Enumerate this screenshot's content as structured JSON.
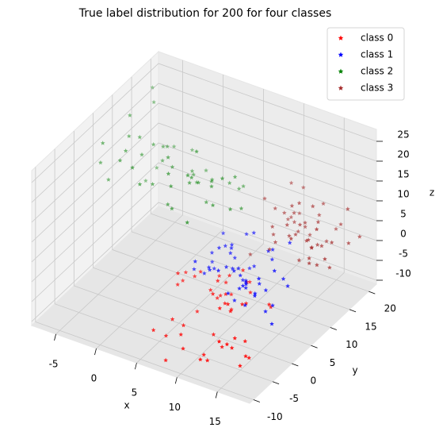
{
  "chart_data": {
    "type": "scatter3d",
    "title": "True label distribution for 200 for four classes",
    "xlabel": "x",
    "ylabel": "y",
    "zlabel": "z",
    "xlim": [
      -8,
      19
    ],
    "ylim": [
      -11,
      22
    ],
    "zlim": [
      -11,
      28
    ],
    "xticks": [
      -5,
      0,
      5,
      10,
      15
    ],
    "yticks": [
      -10,
      -5,
      0,
      5,
      10,
      15,
      20
    ],
    "zticks": [
      -10,
      -5,
      0,
      5,
      10,
      15,
      20,
      25
    ],
    "grid": true,
    "legend": "upper right",
    "series": [
      {
        "name": "class 0",
        "color": "#ff0000",
        "x": [
          6.2,
          9.8,
          12.1,
          4.5,
          14.3,
          8.7,
          10.9,
          7.4,
          11.6,
          13.2,
          5.8,
          9.1,
          15.4,
          3.9,
          8.2,
          12.7,
          10.3,
          6.9,
          14.8,
          7.7,
          11.1,
          9.5,
          13.9,
          5.2,
          8.9,
          10.6,
          12.4,
          7.1,
          15.1,
          4.8,
          9.3,
          11.8,
          6.5,
          13.5,
          8.4,
          10.1,
          14.1,
          7.9,
          12.9,
          5.5,
          9.7,
          11.3,
          6.7,
          13.7,
          8.1,
          10.8,
          15.7,
          4.2,
          12.2,
          9.9
        ],
        "y": [
          -4.2,
          2.1,
          -7.5,
          0.8,
          -2.3,
          5.4,
          -5.9,
          3.2,
          -1.1,
          6.7,
          -8.3,
          1.5,
          -3.6,
          4.1,
          -6.2,
          0.3,
          7.3,
          -2.8,
          2.9,
          -9.1,
          5.8,
          -0.6,
          -4.9,
          3.7,
          -7.1,
          1.9,
          -2.1,
          6.1,
          -5.3,
          0.1,
          4.6,
          -8.7,
          2.5,
          -3.3,
          5.1,
          -1.7,
          -6.6,
          3.9,
          0.9,
          -4.4,
          7.8,
          -2.6,
          1.2,
          -7.8,
          4.3,
          -0.2,
          -5.1,
          2.7,
          -3.9,
          6.4
        ],
        "z": [
          -5.3,
          -2.1,
          -8.4,
          0.5,
          -6.7,
          -1.2,
          -9.3,
          -3.8,
          -0.4,
          -7.1,
          -4.6,
          1.3,
          -8.9,
          -2.7,
          -5.9,
          -0.9,
          -3.4,
          -7.6,
          -1.8,
          -10.1,
          -4.1,
          0.2,
          -6.3,
          -2.4,
          -8.1,
          -5.2,
          -0.7,
          -3.1,
          -9.6,
          -1.5,
          -4.8,
          -7.3,
          0.8,
          -5.6,
          -2.9,
          -8.6,
          -3.7,
          -6.1,
          -1.1,
          -9.8,
          -4.3,
          -0.3,
          -7.9,
          -2.2,
          -5.7,
          -1.6,
          -6.9,
          -3.3,
          -8.2,
          0.1
        ]
      },
      {
        "name": "class 1",
        "color": "#0000ff",
        "x": [
          7.3,
          10.2,
          12.8,
          5.1,
          14.6,
          8.9,
          11.4,
          6.6,
          13.1,
          9.7,
          4.7,
          10.8,
          15.2,
          7.9,
          12.3,
          8.4,
          11.9,
          6.2,
          14.0,
          9.3,
          5.6,
          13.6,
          10.5,
          7.1,
          12.0,
          8.7,
          15.8,
          6.9,
          11.2,
          9.0,
          13.4,
          5.9,
          10.0,
          12.6,
          7.6,
          14.9,
          8.2,
          11.6,
          6.4,
          13.9,
          9.5,
          10.7,
          7.8,
          12.4,
          5.3,
          14.3,
          8.6,
          11.0,
          9.8,
          13.0
        ],
        "y": [
          3.2,
          6.5,
          1.1,
          8.4,
          4.7,
          10.2,
          2.3,
          7.1,
          5.6,
          0.4,
          9.3,
          3.8,
          6.9,
          11.5,
          1.9,
          5.2,
          8.8,
          4.1,
          0.9,
          7.6,
          2.7,
          10.8,
          5.9,
          3.4,
          9.7,
          6.2,
          1.5,
          8.1,
          4.4,
          11.1,
          2.1,
          7.3,
          5.0,
          0.7,
          9.1,
          3.6,
          6.7,
          10.4,
          1.3,
          8.5,
          4.9,
          2.5,
          7.9,
          5.4,
          10.9,
          3.0,
          6.1,
          0.2,
          9.5,
          4.0
        ],
        "z": [
          1.2,
          -2.4,
          3.5,
          -0.8,
          4.9,
          -3.6,
          0.3,
          2.7,
          -1.9,
          5.3,
          -4.2,
          1.8,
          -0.5,
          3.1,
          -2.9,
          0.9,
          4.2,
          -1.3,
          2.2,
          -3.9,
          0.6,
          5.7,
          -2.1,
          1.5,
          3.8,
          -0.2,
          -4.7,
          2.5,
          -1.6,
          4.6,
          0.1,
          -3.2,
          1.9,
          3.3,
          -0.9,
          -2.6,
          2.9,
          0.4,
          4.4,
          -1.1,
          1.0,
          -3.4,
          3.6,
          -0.6,
          2.0,
          -4.0,
          5.0,
          0.7,
          -1.8,
          2.4
        ]
      },
      {
        "name": "class 2",
        "color": "#008000",
        "x": [
          -6.2,
          -3.1,
          0.5,
          -4.8,
          2.3,
          -1.7,
          4.1,
          -5.5,
          -0.3,
          3.2,
          -2.6,
          5.4,
          -6.8,
          1.1,
          -3.9,
          2.9,
          -1.0,
          4.7,
          -5.1,
          0.2,
          -2.2,
          3.8,
          -4.3,
          1.6,
          -0.8,
          5.0,
          -6.0,
          2.5,
          -3.4,
          0.9,
          -1.4,
          4.4,
          -5.8,
          1.8,
          -2.9,
          3.5,
          -0.1,
          -4.6,
          2.0,
          -1.9,
          5.7,
          -3.6,
          0.7,
          -5.3,
          3.0,
          -2.4,
          1.4,
          -0.5,
          4.0,
          -4.0
        ],
        "y": [
          5.2,
          10.4,
          14.1,
          7.6,
          12.8,
          3.9,
          16.5,
          9.3,
          18.2,
          6.1,
          11.7,
          15.4,
          4.4,
          13.3,
          8.5,
          17.6,
          10.9,
          2.8,
          14.7,
          7.2,
          12.1,
          19.3,
          5.7,
          9.9,
          16.0,
          11.3,
          3.3,
          13.9,
          8.0,
          17.1,
          6.6,
          10.1,
          15.8,
          4.9,
          12.5,
          18.8,
          7.9,
          14.4,
          9.6,
          2.4,
          11.9,
          16.8,
          6.3,
          13.0,
          8.8,
          19.0,
          5.5,
          15.0,
          10.6,
          3.6
        ],
        "z": [
          12.3,
          18.7,
          8.4,
          22.1,
          5.9,
          15.6,
          10.2,
          25.3,
          7.1,
          19.4,
          13.8,
          4.2,
          16.9,
          9.5,
          21.7,
          6.8,
          14.1,
          11.6,
          24.0,
          8.9,
          17.3,
          5.1,
          20.5,
          12.9,
          7.7,
          15.2,
          23.4,
          10.7,
          18.1,
          6.2,
          13.4,
          9.1,
          26.2,
          11.1,
          16.4,
          4.7,
          19.9,
          8.1,
          14.8,
          21.0,
          7.4,
          12.0,
          17.8,
          5.6,
          22.8,
          10.0,
          15.9,
          9.7,
          13.1,
          20.2
        ]
      },
      {
        "name": "class 3",
        "color": "#a52a2a",
        "x": [
          12.1,
          15.3,
          9.8,
          17.4,
          13.6,
          10.7,
          16.2,
          18.5,
          11.3,
          14.8,
          9.2,
          16.9,
          12.7,
          15.9,
          10.1,
          17.8,
          13.2,
          11.8,
          14.2,
          18.1,
          9.5,
          16.5,
          12.4,
          15.0,
          10.4,
          17.1,
          13.9,
          11.0,
          14.5,
          18.8,
          12.9,
          16.0,
          10.9,
          15.6,
          13.4,
          17.5,
          11.5,
          14.0,
          9.9,
          16.7,
          12.2,
          18.3,
          13.0,
          15.2,
          10.6,
          17.0,
          11.7,
          14.7,
          16.3,
          12.6
        ],
        "y": [
          10.2,
          14.6,
          8.5,
          17.9,
          12.3,
          19.4,
          9.7,
          15.8,
          11.1,
          20.3,
          13.5,
          8.9,
          16.7,
          10.8,
          18.5,
          12.9,
          14.1,
          9.3,
          17.2,
          11.7,
          19.8,
          13.0,
          15.5,
          8.2,
          16.1,
          10.5,
          18.9,
          12.0,
          14.9,
          9.0,
          17.5,
          11.4,
          20.0,
          13.8,
          15.2,
          9.6,
          16.4,
          12.6,
          18.1,
          10.0,
          14.3,
          19.1,
          11.9,
          17.0,
          13.3,
          8.7,
          15.9,
          10.9,
          18.4,
          12.2
        ],
        "z": [
          5.3,
          8.7,
          2.1,
          10.5,
          6.4,
          3.2,
          9.1,
          4.6,
          7.8,
          1.4,
          11.2,
          5.9,
          3.7,
          8.1,
          2.6,
          6.9,
          12.4,
          4.1,
          7.3,
          1.9,
          9.6,
          5.0,
          3.4,
          10.1,
          6.1,
          2.9,
          8.4,
          4.8,
          11.8,
          7.0,
          1.1,
          5.6,
          9.3,
          3.9,
          6.6,
          13.0,
          4.3,
          8.9,
          2.3,
          7.5,
          10.8,
          3.1,
          6.0,
          1.6,
          9.9,
          4.9,
          7.2,
          2.0,
          5.4,
          8.2
        ]
      }
    ]
  }
}
